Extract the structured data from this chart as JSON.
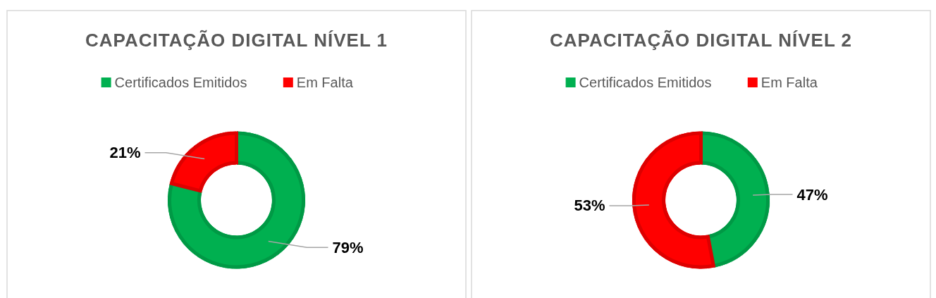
{
  "chart_data": [
    {
      "type": "donut",
      "title": "CAPACITAÇÃO DIGITAL NÍVEL 1",
      "categories": [
        "Certificados Emitidos",
        "Em Falta"
      ],
      "values": [
        79,
        21
      ],
      "colors": [
        "#00b050",
        "#ff0000"
      ],
      "value_labels": [
        "79%",
        "21%"
      ],
      "legend": "top"
    },
    {
      "type": "donut",
      "title": "CAPACITAÇÃO DIGITAL NÍVEL 2",
      "categories": [
        "Certificados Emitidos",
        "Em Falta"
      ],
      "values": [
        47,
        53
      ],
      "colors": [
        "#00b050",
        "#ff0000"
      ],
      "value_labels": [
        "47%",
        "53%"
      ],
      "legend": "top"
    }
  ]
}
